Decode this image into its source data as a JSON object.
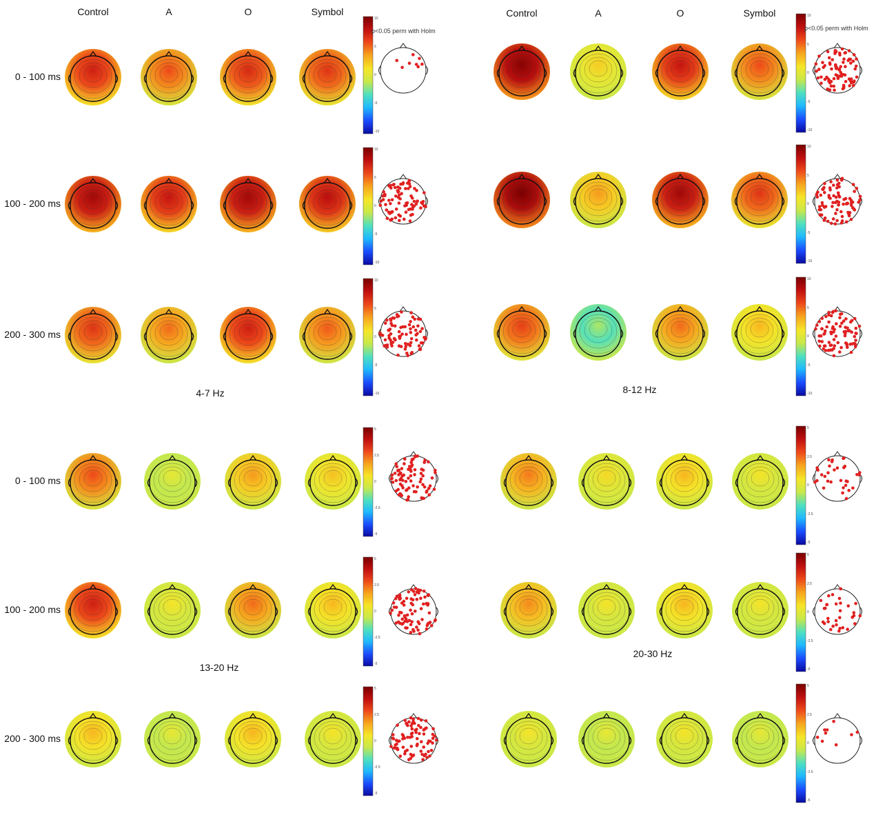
{
  "column_headers": [
    "Control",
    "A",
    "O",
    "Symbol"
  ],
  "row_labels": [
    "0 - 100 ms",
    "100 - 200 ms",
    "200 - 300 ms"
  ],
  "significance_note": "p<0.05 perm with Holm",
  "colormap": [
    "#0a0aa0",
    "#1a4cff",
    "#1fb8ff",
    "#4fe0c0",
    "#c8e84a",
    "#f5e628",
    "#f7a51e",
    "#ee4a1a",
    "#c01010",
    "#7a0000"
  ],
  "marker_color": "#e02020",
  "bands": [
    {
      "label": "4-7 Hz",
      "colorbar_ticks": [
        "10",
        "5",
        "0",
        "-5",
        "-10"
      ],
      "maps": [
        [
          0.78,
          0.7,
          0.76,
          0.74
        ],
        [
          0.86,
          0.8,
          0.86,
          0.82
        ],
        [
          0.74,
          0.66,
          0.78,
          0.68
        ]
      ],
      "sig_electrodes": [
        "few",
        "many",
        "many"
      ]
    },
    {
      "label": "8-12 Hz",
      "colorbar_ticks": [
        "10",
        "5",
        "0",
        "-5",
        "-10"
      ],
      "maps": [
        [
          0.9,
          0.52,
          0.8,
          0.7
        ],
        [
          0.92,
          0.6,
          0.86,
          0.74
        ],
        [
          0.72,
          0.34,
          0.66,
          0.56
        ]
      ],
      "sig_electrodes": [
        "many",
        "many",
        "many"
      ]
    },
    {
      "label": "13-20 Hz",
      "colorbar_ticks": [
        "5",
        "2.5",
        "0",
        "-2.5",
        "-5"
      ],
      "maps": [
        [
          0.7,
          0.44,
          0.6,
          0.54
        ],
        [
          0.78,
          0.48,
          0.66,
          0.56
        ],
        [
          0.56,
          0.44,
          0.56,
          0.48
        ]
      ],
      "sig_electrodes": [
        "many",
        "many",
        "many"
      ]
    },
    {
      "label": "20-30 Hz",
      "colorbar_ticks": [
        "5",
        "2.5",
        "0",
        "-2.5",
        "-5"
      ],
      "maps": [
        [
          0.64,
          0.5,
          0.56,
          0.48
        ],
        [
          0.62,
          0.48,
          0.56,
          0.48
        ],
        [
          0.48,
          0.44,
          0.48,
          0.44
        ]
      ],
      "sig_electrodes": [
        "some",
        "some",
        "few"
      ]
    }
  ]
}
